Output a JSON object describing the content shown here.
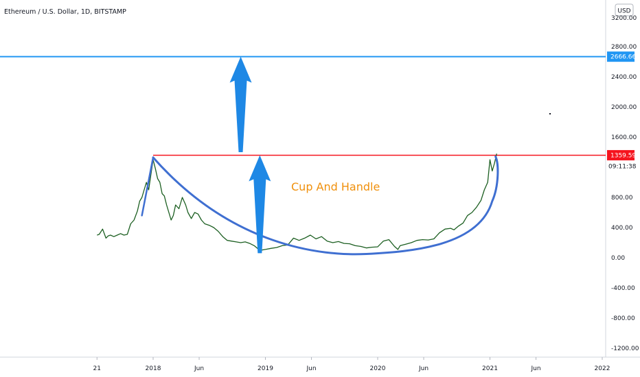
{
  "header": {
    "title": "Ethereum / U.S. Dollar, 1D, BITSTAMP",
    "currency_button": "USD"
  },
  "chart_data": {
    "type": "line",
    "title": "Ethereum / U.S. Dollar, 1D, BITSTAMP",
    "xlabel": "",
    "ylabel": "",
    "ylim": [
      -1350,
      3350
    ],
    "y_ticks": [
      {
        "v": 2800,
        "label": "2800.00"
      },
      {
        "v": 2400,
        "label": "2400.00"
      },
      {
        "v": 2000,
        "label": "2000.00"
      },
      {
        "v": 1600,
        "label": "1600.00"
      },
      {
        "v": 800,
        "label": "800.00"
      },
      {
        "v": 400,
        "label": "400.00"
      },
      {
        "v": 0,
        "label": "0.00"
      },
      {
        "v": -400,
        "label": "-400.00"
      },
      {
        "v": -800,
        "label": "-800.00"
      },
      {
        "v": -1200,
        "label": "-1200.00"
      }
    ],
    "x_ticks": [
      {
        "t": 2017.5,
        "label": "21"
      },
      {
        "t": 2018.0,
        "label": "2018"
      },
      {
        "t": 2018.41,
        "label": "Jun"
      },
      {
        "t": 2019.0,
        "label": "2019"
      },
      {
        "t": 2019.41,
        "label": "Jun"
      },
      {
        "t": 2020.0,
        "label": "2020"
      },
      {
        "t": 2020.41,
        "label": "Jun"
      },
      {
        "t": 2021.0,
        "label": "2021"
      },
      {
        "t": 2021.41,
        "label": "Jun"
      },
      {
        "t": 2022.0,
        "label": "2022"
      }
    ],
    "xlim": [
      2017.0,
      2022.05
    ],
    "series": [
      {
        "color": "#1b5e20",
        "x": [
          2017.5,
          2017.52,
          2017.55,
          2017.58,
          2017.6,
          2017.62,
          2017.65,
          2017.68,
          2017.71,
          2017.74,
          2017.77,
          2017.8,
          2017.83,
          2017.86,
          2017.88,
          2017.9,
          2017.92,
          2017.94,
          2017.96,
          2017.98,
          2018.0,
          2018.02,
          2018.04,
          2018.06,
          2018.08,
          2018.1,
          2018.12,
          2018.14,
          2018.16,
          2018.18,
          2018.2,
          2018.23,
          2018.26,
          2018.29,
          2018.31,
          2018.34,
          2018.37,
          2018.4,
          2018.43,
          2018.46,
          2018.5,
          2018.54,
          2018.58,
          2018.62,
          2018.66,
          2018.7,
          2018.74,
          2018.78,
          2018.82,
          2018.86,
          2018.9,
          2018.94,
          2018.96,
          2019.0,
          2019.05,
          2019.1,
          2019.15,
          2019.2,
          2019.25,
          2019.3,
          2019.35,
          2019.4,
          2019.45,
          2019.5,
          2019.55,
          2019.6,
          2019.65,
          2019.7,
          2019.75,
          2019.8,
          2019.85,
          2019.9,
          2019.95,
          2020.0,
          2020.05,
          2020.1,
          2020.15,
          2020.18,
          2020.2,
          2020.25,
          2020.3,
          2020.35,
          2020.4,
          2020.45,
          2020.5,
          2020.55,
          2020.6,
          2020.65,
          2020.68,
          2020.72,
          2020.76,
          2020.8,
          2020.84,
          2020.88,
          2020.92,
          2020.95,
          2020.98,
          2021.0,
          2021.02,
          2021.04,
          2021.06
        ],
        "y": [
          300,
          310,
          380,
          260,
          290,
          300,
          280,
          300,
          320,
          300,
          310,
          450,
          500,
          620,
          750,
          800,
          900,
          1000,
          900,
          1100,
          1300,
          1180,
          1050,
          1000,
          850,
          820,
          700,
          600,
          500,
          560,
          700,
          650,
          800,
          700,
          600,
          520,
          600,
          580,
          500,
          450,
          430,
          400,
          350,
          280,
          230,
          220,
          210,
          200,
          210,
          190,
          160,
          110,
          100,
          110,
          125,
          135,
          160,
          170,
          260,
          230,
          260,
          300,
          250,
          280,
          220,
          200,
          215,
          190,
          185,
          160,
          150,
          130,
          140,
          145,
          220,
          240,
          150,
          110,
          160,
          180,
          200,
          230,
          240,
          235,
          250,
          330,
          380,
          390,
          370,
          420,
          460,
          560,
          600,
          670,
          760,
          900,
          1000,
          1300,
          1150,
          1250,
          1380
        ]
      }
    ]
  },
  "levels": {
    "resistance_label": "1359.59",
    "target_label": "2666.66",
    "target_value": 2666.66,
    "resistance_value": 1359.59,
    "countdown_label": "09:11:38",
    "top_tick_label": "3200.00",
    "resistance_color": "#f5141e",
    "target_color": "#2196f3"
  },
  "annotation": {
    "text": "Cup And Handle",
    "color": "#f0900c"
  },
  "colors": {
    "price_line": "#1b5e20",
    "cup_curve": "#3f6fd1",
    "arrow": "#1e88e5"
  }
}
